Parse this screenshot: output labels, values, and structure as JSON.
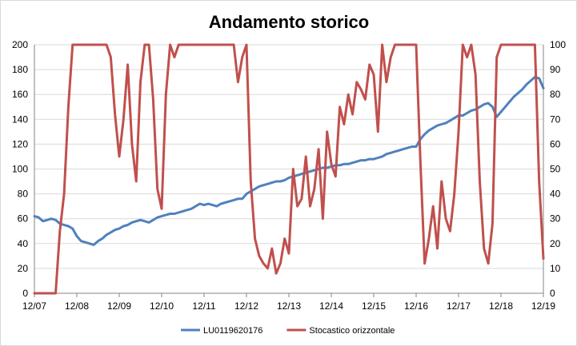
{
  "chart_data": {
    "type": "line",
    "title": "Andamento storico",
    "x_tick_labels": [
      "12/07",
      "12/08",
      "12/09",
      "12/10",
      "12/11",
      "12/12",
      "12/13",
      "12/14",
      "12/15",
      "12/16",
      "12/17",
      "12/18",
      "12/19"
    ],
    "y_left": {
      "min": 0,
      "max": 200,
      "step": 20,
      "tick_labels": [
        "0",
        "20",
        "40",
        "60",
        "80",
        "100",
        "120",
        "140",
        "160",
        "180",
        "200"
      ]
    },
    "y_right": {
      "min": 0,
      "max": 100,
      "step": 10,
      "tick_labels": [
        "0",
        "10",
        "20",
        "30",
        "40",
        "50",
        "60",
        "70",
        "80",
        "90",
        "100"
      ]
    },
    "grid": "horizontal",
    "legend_position": "bottom",
    "x": [
      0.0,
      0.1,
      0.2,
      0.3,
      0.4,
      0.5,
      0.6,
      0.7,
      0.8,
      0.9,
      1.0,
      1.1,
      1.2,
      1.3,
      1.4,
      1.5,
      1.6,
      1.7,
      1.8,
      1.9,
      2.0,
      2.1,
      2.2,
      2.3,
      2.4,
      2.5,
      2.6,
      2.7,
      2.8,
      2.9,
      3.0,
      3.1,
      3.2,
      3.3,
      3.4,
      3.5,
      3.6,
      3.7,
      3.8,
      3.9,
      4.0,
      4.1,
      4.2,
      4.3,
      4.4,
      4.5,
      4.6,
      4.7,
      4.8,
      4.9,
      5.0,
      5.1,
      5.2,
      5.3,
      5.4,
      5.5,
      5.6,
      5.7,
      5.8,
      5.9,
      6.0,
      6.1,
      6.2,
      6.3,
      6.4,
      6.5,
      6.6,
      6.7,
      6.8,
      6.9,
      7.0,
      7.1,
      7.2,
      7.3,
      7.4,
      7.5,
      7.6,
      7.7,
      7.8,
      7.9,
      8.0,
      8.1,
      8.2,
      8.3,
      8.4,
      8.5,
      8.6,
      8.7,
      8.8,
      8.9,
      9.0,
      9.1,
      9.2,
      9.3,
      9.4,
      9.5,
      9.6,
      9.7,
      9.8,
      9.9,
      10.0,
      10.1,
      10.2,
      10.3,
      10.4,
      10.5,
      10.6,
      10.7,
      10.8,
      10.9,
      11.0,
      11.1,
      11.2,
      11.3,
      11.4,
      11.5,
      11.6,
      11.7,
      11.8,
      11.9,
      12.0
    ],
    "series": [
      {
        "name": "LU0119620176",
        "axis": "left",
        "color": "#4f81bd",
        "values": [
          62,
          61,
          58,
          59,
          60,
          59,
          56,
          55,
          54,
          52,
          46,
          42,
          41,
          40,
          39,
          42,
          44,
          47,
          49,
          51,
          52,
          54,
          55,
          57,
          58,
          59,
          58,
          57,
          59,
          61,
          62,
          63,
          64,
          64,
          65,
          66,
          67,
          68,
          70,
          72,
          71,
          72,
          71,
          70,
          72,
          73,
          74,
          75,
          76,
          76,
          80,
          82,
          84,
          86,
          87,
          88,
          89,
          90,
          90,
          91,
          93,
          94,
          95,
          96,
          97,
          98,
          99,
          100,
          101,
          101,
          102,
          103,
          103,
          104,
          104,
          105,
          106,
          107,
          107,
          108,
          108,
          109,
          110,
          112,
          113,
          114,
          115,
          116,
          117,
          118,
          118,
          124,
          128,
          131,
          133,
          135,
          136,
          137,
          139,
          141,
          143,
          143,
          145,
          147,
          148,
          150,
          152,
          153,
          150,
          142,
          146,
          150,
          154,
          158,
          161,
          164,
          168,
          171,
          174,
          173,
          165
        ]
      },
      {
        "name": "Stocastico orizzontale",
        "axis": "right",
        "color": "#c0504d",
        "values": [
          0,
          0,
          0,
          0,
          0,
          0,
          25,
          40,
          75,
          100,
          100,
          100,
          100,
          100,
          100,
          100,
          100,
          100,
          95,
          72,
          55,
          70,
          92,
          60,
          45,
          85,
          100,
          100,
          78,
          42,
          34,
          80,
          100,
          95,
          100,
          100,
          100,
          100,
          100,
          100,
          100,
          100,
          100,
          100,
          100,
          100,
          100,
          100,
          85,
          95,
          100,
          45,
          22,
          15,
          12,
          10,
          18,
          8,
          12,
          22,
          16,
          50,
          35,
          38,
          55,
          35,
          42,
          58,
          30,
          65,
          52,
          47,
          75,
          68,
          80,
          72,
          85,
          82,
          78,
          92,
          88,
          65,
          100,
          85,
          95,
          100,
          100,
          100,
          100,
          100,
          100,
          53,
          12,
          22,
          35,
          18,
          45,
          30,
          25,
          40,
          65,
          100,
          95,
          100,
          88,
          45,
          18,
          12,
          28,
          95,
          100,
          100,
          100,
          100,
          100,
          100,
          100,
          100,
          100,
          45,
          14
        ]
      }
    ]
  }
}
